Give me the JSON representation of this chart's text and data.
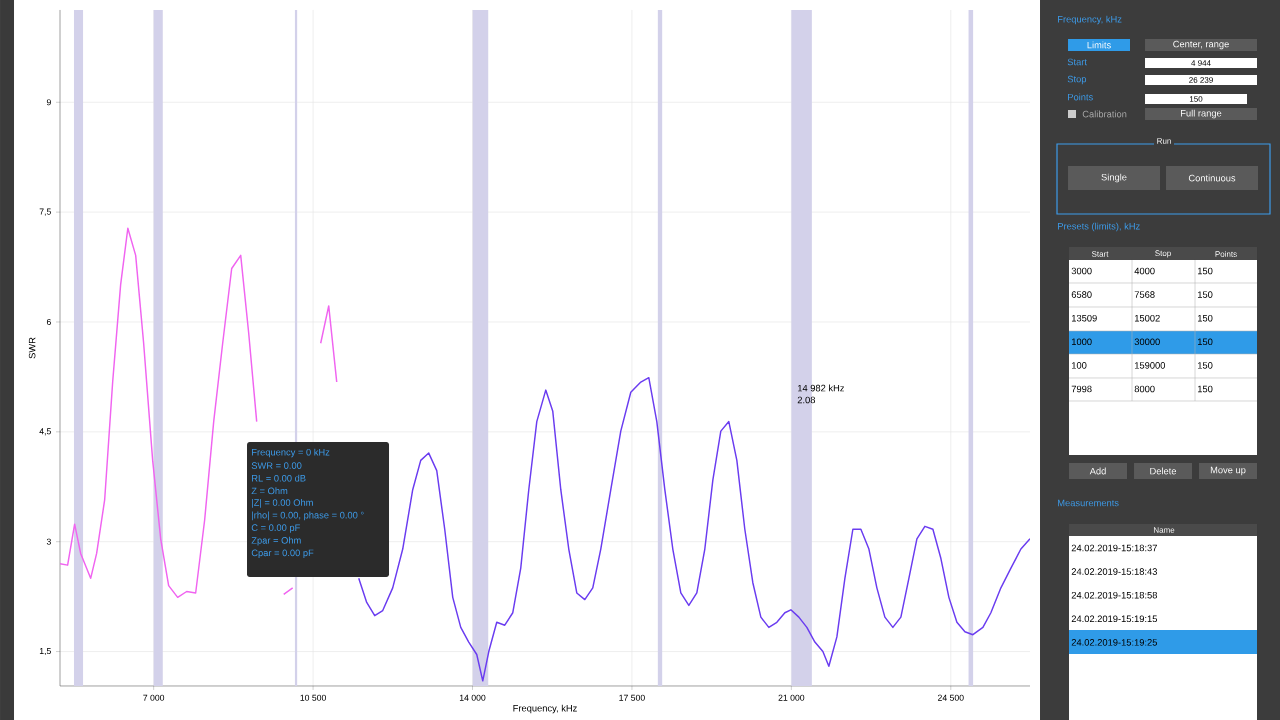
{
  "chart_data": {
    "type": "line",
    "xlabel": "Frequency, kHz",
    "ylabel": "SWR",
    "xlim": [
      4944,
      26239
    ],
    "ylim": [
      1.03,
      10.26
    ],
    "xticks": [
      {
        "value": 7000,
        "label": "7 000"
      },
      {
        "value": 10500,
        "label": "10 500"
      },
      {
        "value": 14000,
        "label": "14 000"
      },
      {
        "value": 17500,
        "label": "17 500"
      },
      {
        "value": 21000,
        "label": "21 000"
      },
      {
        "value": 24500,
        "label": "24 500"
      }
    ],
    "yticks": [
      {
        "value": 1.5,
        "label": "1,5"
      },
      3,
      {
        "value": 4.5,
        "label": "4,5"
      },
      6,
      {
        "value": 7.5,
        "label": "7,5"
      },
      9
    ],
    "grid": true,
    "bands": [
      {
        "axis": "x",
        "from": 5250,
        "to": 5450,
        "color": "#d3d1ea"
      },
      {
        "axis": "x",
        "from": 7000,
        "to": 7200,
        "color": "#d3d1ea"
      },
      {
        "axis": "x",
        "from": 10100,
        "to": 10150,
        "color": "#d3d1ea"
      },
      {
        "axis": "x",
        "from": 14000,
        "to": 14350,
        "color": "#d3d1ea"
      },
      {
        "axis": "x",
        "from": 18068,
        "to": 18168,
        "color": "#d3d1ea"
      },
      {
        "axis": "x",
        "from": 21000,
        "to": 21450,
        "color": "#d3d1ea"
      },
      {
        "axis": "x",
        "from": 24890,
        "to": 24990,
        "color": "#d3d1ea"
      }
    ],
    "series": [
      {
        "color": "#f064f0",
        "x": [
          4944,
          5111,
          5265,
          5397,
          5617,
          5748,
          5924,
          6100,
          6275,
          6433,
          6605,
          6780,
          6978,
          7154,
          7329,
          7527,
          7725,
          7922,
          8120,
          8318,
          8515,
          8713,
          8911,
          9086,
          9262,
          9438,
          9613,
          9855,
          10052,
          10228,
          10448,
          10667,
          10843,
          11019
        ],
        "values": [
          2.7,
          2.68,
          3.24,
          2.84,
          2.5,
          2.84,
          3.57,
          5.18,
          6.51,
          7.28,
          6.91,
          5.71,
          4.11,
          3.04,
          2.4,
          2.24,
          2.32,
          2.3,
          3.3,
          4.64,
          5.71,
          6.73,
          6.91,
          5.85,
          4.64,
          null,
          null,
          2.28,
          2.37,
          null,
          null,
          5.71,
          6.22,
          5.18
        ]
      },
      {
        "color": "#6a3cf0",
        "x": [
          11502,
          11677,
          11853,
          12029,
          12248,
          12468,
          12687,
          12863,
          13039,
          13215,
          13390,
          13566,
          13742,
          13917,
          14093,
          14225,
          14357,
          14532,
          14708,
          14884,
          15059,
          15235,
          15411,
          15608,
          15762,
          15938,
          16113,
          16289,
          16465,
          16640,
          16816,
          17036,
          17255,
          17475,
          17695,
          17870,
          18046,
          18222,
          18397,
          18573,
          18749,
          18924,
          19100,
          19276,
          19451,
          19627,
          19803,
          19978,
          20154,
          20330,
          20505,
          20681,
          20857,
          20989,
          21164,
          21340,
          21516,
          21692,
          21823,
          21999,
          22175,
          22350,
          22526,
          22702,
          22877,
          23053,
          23228,
          23404,
          23580,
          23756,
          23931,
          24107,
          24283,
          24458,
          24634,
          24810,
          24985,
          25205,
          25380,
          25600,
          25820,
          26039,
          26239
        ],
        "values": [
          2.5,
          2.17,
          1.99,
          2.06,
          2.37,
          2.9,
          3.71,
          4.11,
          4.21,
          3.97,
          3.17,
          2.24,
          1.83,
          1.63,
          1.46,
          1.1,
          1.5,
          1.9,
          1.86,
          2.03,
          2.64,
          3.71,
          4.64,
          5.07,
          4.78,
          3.71,
          2.9,
          2.3,
          2.21,
          2.37,
          2.9,
          3.71,
          4.51,
          5.04,
          5.18,
          5.24,
          4.64,
          3.71,
          2.9,
          2.3,
          2.13,
          2.3,
          2.9,
          3.84,
          4.51,
          4.64,
          4.11,
          3.17,
          2.44,
          1.97,
          1.83,
          1.9,
          2.03,
          2.07,
          1.97,
          1.83,
          1.63,
          1.5,
          1.3,
          1.7,
          2.5,
          3.17,
          3.17,
          2.9,
          2.37,
          1.97,
          1.83,
          1.97,
          2.5,
          3.04,
          3.21,
          3.17,
          2.77,
          2.24,
          1.9,
          1.77,
          1.73,
          1.83,
          2.03,
          2.37,
          2.64,
          2.9,
          3.04
        ]
      }
    ],
    "annotations": [
      "Frequency, kHz",
      "Limits",
      "Center, range",
      "Start",
      "4 944",
      "Stop",
      "26 239",
      "Points",
      "150",
      "Calibration",
      "Full range",
      "Run",
      "Single",
      "Continuous",
      "Presets (limits), kHz",
      "Start",
      "Stop",
      "Points",
      "3000",
      "4000",
      "150",
      "6580",
      "7568",
      "150",
      "13509",
      "15002",
      "150",
      "1000",
      "30000",
      "150",
      "100",
      "159000",
      "150",
      "7998",
      "8000",
      "150",
      "Add",
      "Delete",
      "Move up",
      "Measurements",
      "Name",
      "24.02.2019-15:18:37",
      "24.02.2019-15:18:43",
      "24.02.2019-15:18:58",
      "24.02.2019-15:19:15",
      "24.02.2019-15:19:25",
      "Frequency = 0 kHz",
      "SWR = 0.00",
      "RL = 0.00 dB",
      "Z =  Ohm",
      "|Z| = 0.00 Ohm",
      "|rho| = 0.00, phase = 0.00 °",
      "C = 0.00 pF",
      "Zpar =  Ohm",
      "Cpar = 0.00 pF",
      "14 982 kHz",
      "2.08"
    ]
  }
}
